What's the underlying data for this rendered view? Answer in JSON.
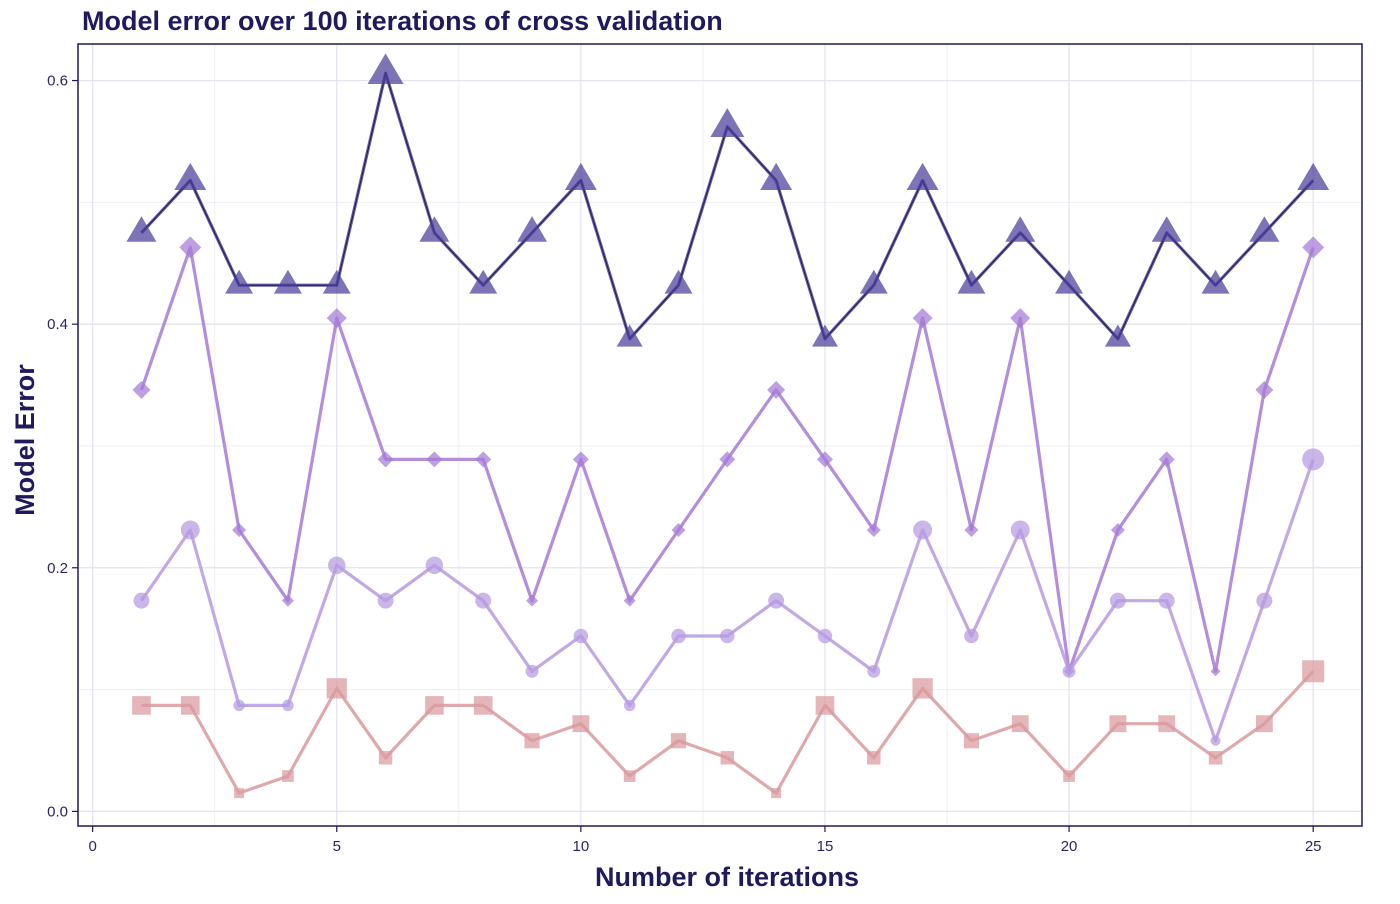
{
  "chart_data": {
    "type": "line",
    "title": "Model error over 100 iterations of cross validation",
    "xlabel": "Number of iterations",
    "ylabel": "Model Error",
    "xlim": [
      -0.3,
      26.0
    ],
    "ylim": [
      -0.012,
      0.63
    ],
    "x_ticks": [
      0,
      5,
      10,
      15,
      20,
      25
    ],
    "y_ticks": [
      0.0,
      0.2,
      0.4,
      0.6
    ],
    "x_tick_labels": [
      "0",
      "5",
      "10",
      "15",
      "20",
      "25"
    ],
    "y_tick_labels": [
      "0.0",
      "0.2",
      "0.4",
      "0.6"
    ],
    "grid": true,
    "legend": "none",
    "x": [
      1,
      2,
      3,
      4,
      5,
      6,
      7,
      8,
      9,
      10,
      11,
      12,
      13,
      14,
      15,
      16,
      17,
      18,
      19,
      20,
      21,
      22,
      23,
      24,
      25
    ],
    "series": [
      {
        "marker": "triangle",
        "color": "#4a3f9a",
        "values": [
          0.475,
          0.518,
          0.432,
          0.432,
          0.432,
          0.606,
          0.475,
          0.432,
          0.475,
          0.518,
          0.388,
          0.432,
          0.562,
          0.518,
          0.388,
          0.432,
          0.518,
          0.432,
          0.475,
          0.432,
          0.388,
          0.475,
          0.432,
          0.475,
          0.518
        ]
      },
      {
        "marker": "diamond",
        "color": "#a57ad6",
        "values": [
          0.346,
          0.463,
          0.231,
          0.173,
          0.405,
          0.289,
          0.289,
          0.289,
          0.173,
          0.289,
          0.173,
          0.231,
          0.289,
          0.346,
          0.289,
          0.231,
          0.405,
          0.231,
          0.405,
          0.115,
          0.231,
          0.289,
          0.115,
          0.346,
          0.463
        ]
      },
      {
        "marker": "circle",
        "color": "#b69ae0",
        "values": [
          0.173,
          0.231,
          0.087,
          0.087,
          0.202,
          0.173,
          0.202,
          0.173,
          0.115,
          0.144,
          0.087,
          0.144,
          0.144,
          0.173,
          0.144,
          0.115,
          0.231,
          0.144,
          0.231,
          0.115,
          0.173,
          0.173,
          0.058,
          0.173,
          0.289
        ]
      },
      {
        "marker": "square",
        "color": "#d99a9e",
        "values": [
          0.087,
          0.087,
          0.015,
          0.029,
          0.101,
          0.044,
          0.087,
          0.087,
          0.058,
          0.072,
          0.029,
          0.058,
          0.044,
          0.015,
          0.087,
          0.044,
          0.101,
          0.058,
          0.072,
          0.029,
          0.072,
          0.072,
          0.044,
          0.072,
          0.115
        ]
      }
    ]
  },
  "colors": {
    "panel_border": "#1f1a5c",
    "grid_major": "#e4e2ee",
    "grid_minor": "#efeef5",
    "text": "#1f1a5c"
  }
}
